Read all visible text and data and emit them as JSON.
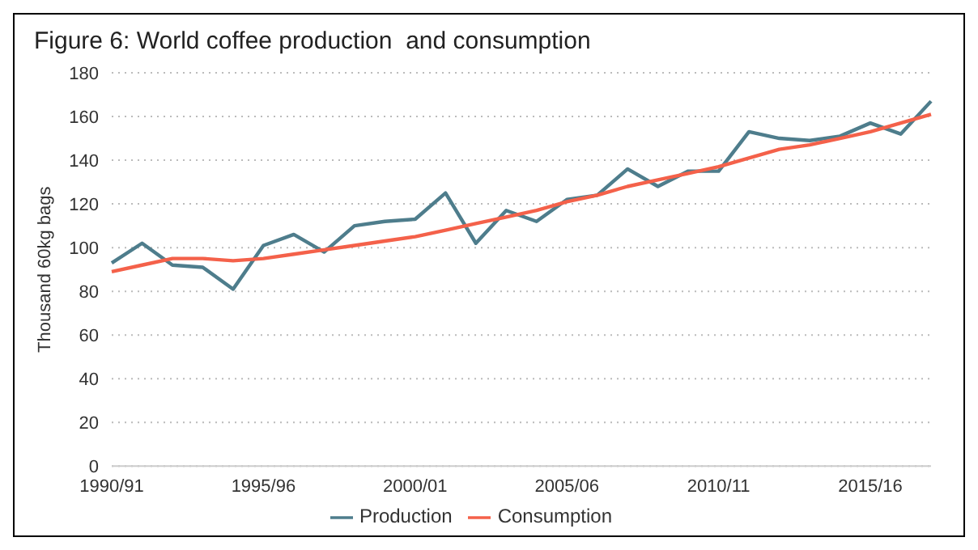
{
  "chart_data": {
    "type": "line",
    "title": "Figure 6: World coffee production  and consumption",
    "ylabel": "Thousand 60kg bags",
    "categories": [
      "1990/91",
      null,
      null,
      null,
      null,
      "1995/96",
      null,
      null,
      null,
      null,
      "2000/01",
      null,
      null,
      null,
      null,
      "2005/06",
      null,
      null,
      null,
      null,
      "2010/11",
      null,
      null,
      null,
      null,
      "2015/16",
      null,
      null
    ],
    "series": [
      {
        "name": "Production",
        "color": "#4e7d8c",
        "values": [
          93,
          102,
          92,
          91,
          81,
          101,
          106,
          98,
          110,
          112,
          113,
          125,
          102,
          117,
          112,
          122,
          124,
          136,
          128,
          135,
          135,
          153,
          150,
          149,
          151,
          157,
          152,
          167
        ]
      },
      {
        "name": "Consumption",
        "color": "#f4614a",
        "values": [
          89,
          92,
          95,
          95,
          94,
          95,
          97,
          99,
          101,
          103,
          105,
          108,
          111,
          114,
          117,
          121,
          124,
          128,
          131,
          134,
          137,
          141,
          145,
          147,
          150,
          153,
          157,
          161
        ]
      }
    ],
    "ylim": [
      0,
      180
    ],
    "yticks": [
      0,
      20,
      40,
      60,
      80,
      100,
      120,
      140,
      160,
      180
    ],
    "grid": "y",
    "legend": "bottom",
    "marker": "none",
    "line_style": "solid"
  }
}
